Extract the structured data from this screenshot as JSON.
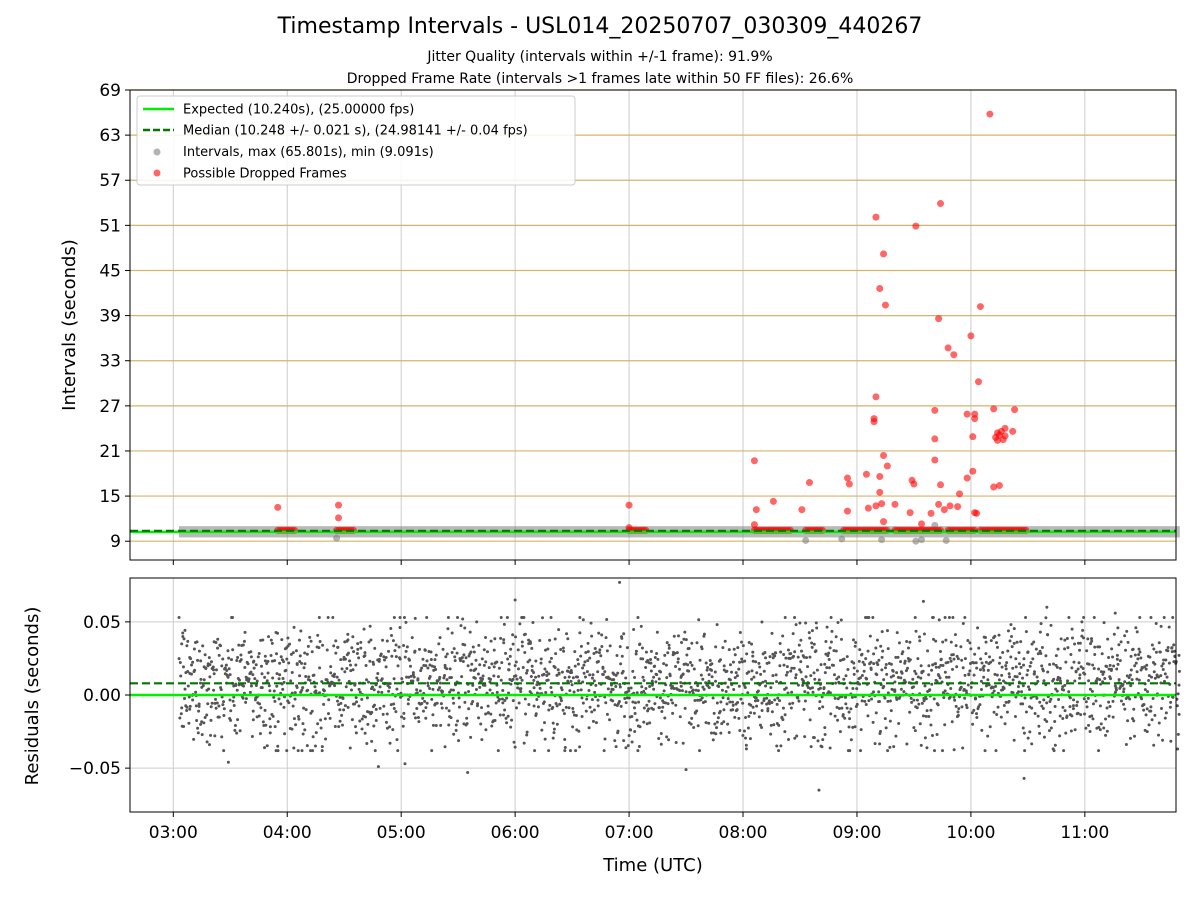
{
  "figure": {
    "title": "Timestamp Intervals - USL014_20250707_030309_440267",
    "subtitle1": "Jitter Quality (intervals within +/-1 frame): 91.9%",
    "subtitle2": "Dropped Frame Rate (intervals >1 frames late within 50 FF files): 26.6%"
  },
  "colors": {
    "expected": "#00ee00",
    "median": "#007700",
    "intervals": "#808080",
    "dropped": "#ff0000",
    "threshold_grid": "#d4b46a",
    "grid": "#cccccc",
    "residual_points": "#555555"
  },
  "chart_data": [
    {
      "type": "scatter",
      "ylabel": "Intervals (seconds)",
      "xlim_hours": [
        2.62,
        11.8
      ],
      "ylim": [
        6.5,
        69
      ],
      "yticks": [
        "9",
        "15",
        "21",
        "27",
        "33",
        "39",
        "45",
        "51",
        "57",
        "63",
        "69"
      ],
      "threshold_gridlines": [
        9,
        15,
        21,
        27,
        33,
        39,
        45,
        51,
        57,
        63,
        69
      ],
      "grid": true,
      "legend_position": "top-left",
      "legend": {
        "expected": "Expected (10.240s), (25.00000 fps)",
        "median": "Median (10.248 +/- 0.021 s), (24.98141 +/- 0.04 fps)",
        "intervals": "Intervals, max (65.801s), min (9.091s)",
        "dropped": "Possible Dropped Frames"
      },
      "expected": 10.24,
      "median": 10.248,
      "interval_band": {
        "x_start": "03:03",
        "x_end": "11:50",
        "y_low": 9.5,
        "y_high": 11.0
      },
      "gray_outliers": [
        {
          "x": "04:26",
          "y": 9.4
        },
        {
          "x": "08:33",
          "y": 9.1
        },
        {
          "x": "08:52",
          "y": 9.3
        },
        {
          "x": "09:13",
          "y": 9.2
        },
        {
          "x": "09:31",
          "y": 9.0
        },
        {
          "x": "09:34",
          "y": 9.2
        },
        {
          "x": "09:41",
          "y": 11.1
        },
        {
          "x": "09:47",
          "y": 9.1
        }
      ],
      "dropped_clusters": [
        {
          "x_start": "03:55",
          "x_end": "04:04",
          "y": 10.45
        },
        {
          "x_start": "04:26",
          "x_end": "04:36",
          "y": 10.45
        },
        {
          "x_start": "07:00",
          "x_end": "07:10",
          "y": 10.45
        },
        {
          "x_start": "08:06",
          "x_end": "08:25",
          "y": 10.45
        },
        {
          "x_start": "08:33",
          "x_end": "08:42",
          "y": 10.45
        },
        {
          "x_start": "08:53",
          "x_end": "09:16",
          "y": 10.45
        },
        {
          "x_start": "09:20",
          "x_end": "09:45",
          "y": 10.45
        },
        {
          "x_start": "09:48",
          "x_end": "10:02",
          "y": 10.45
        },
        {
          "x_start": "10:05",
          "x_end": "10:30",
          "y": 10.45
        }
      ],
      "dropped_points": [
        {
          "x": "03:55",
          "y": 13.5
        },
        {
          "x": "04:27",
          "y": 13.8
        },
        {
          "x": "04:27",
          "y": 12.1
        },
        {
          "x": "07:00",
          "y": 13.8
        },
        {
          "x": "07:00",
          "y": 10.8
        },
        {
          "x": "08:06",
          "y": 19.7
        },
        {
          "x": "08:07",
          "y": 13.2
        },
        {
          "x": "08:06",
          "y": 11.2
        },
        {
          "x": "08:16",
          "y": 14.3
        },
        {
          "x": "08:31",
          "y": 13.2
        },
        {
          "x": "08:35",
          "y": 16.8
        },
        {
          "x": "08:55",
          "y": 17.4
        },
        {
          "x": "08:56",
          "y": 16.6
        },
        {
          "x": "08:55",
          "y": 13.0
        },
        {
          "x": "09:05",
          "y": 17.9
        },
        {
          "x": "09:06",
          "y": 13.4
        },
        {
          "x": "09:09",
          "y": 25.3
        },
        {
          "x": "09:09",
          "y": 24.9
        },
        {
          "x": "09:10",
          "y": 28.2
        },
        {
          "x": "09:10",
          "y": 13.7
        },
        {
          "x": "09:10",
          "y": 52.1
        },
        {
          "x": "09:12",
          "y": 42.6
        },
        {
          "x": "09:12",
          "y": 17.6
        },
        {
          "x": "09:12",
          "y": 15.5
        },
        {
          "x": "09:13",
          "y": 14.0
        },
        {
          "x": "09:14",
          "y": 47.2
        },
        {
          "x": "09:14",
          "y": 20.4
        },
        {
          "x": "09:14",
          "y": 11.6
        },
        {
          "x": "09:15",
          "y": 40.4
        },
        {
          "x": "09:16",
          "y": 19.0
        },
        {
          "x": "09:20",
          "y": 13.9
        },
        {
          "x": "09:28",
          "y": 12.8
        },
        {
          "x": "09:29",
          "y": 17.1
        },
        {
          "x": "09:30",
          "y": 16.6
        },
        {
          "x": "09:31",
          "y": 50.9
        },
        {
          "x": "09:34",
          "y": 11.3
        },
        {
          "x": "09:39",
          "y": 12.7
        },
        {
          "x": "09:41",
          "y": 22.6
        },
        {
          "x": "09:41",
          "y": 19.8
        },
        {
          "x": "09:41",
          "y": 26.4
        },
        {
          "x": "09:43",
          "y": 38.6
        },
        {
          "x": "09:43",
          "y": 13.9
        },
        {
          "x": "09:44",
          "y": 16.5
        },
        {
          "x": "09:44",
          "y": 53.9
        },
        {
          "x": "09:46",
          "y": 13.2
        },
        {
          "x": "09:48",
          "y": 34.7
        },
        {
          "x": "09:49",
          "y": 13.7
        },
        {
          "x": "09:51",
          "y": 33.8
        },
        {
          "x": "09:53",
          "y": 13.6
        },
        {
          "x": "09:54",
          "y": 15.3
        },
        {
          "x": "09:58",
          "y": 17.4
        },
        {
          "x": "09:58",
          "y": 25.9
        },
        {
          "x": "10:00",
          "y": 36.3
        },
        {
          "x": "10:01",
          "y": 22.9
        },
        {
          "x": "10:01",
          "y": 18.3
        },
        {
          "x": "10:02",
          "y": 25.3
        },
        {
          "x": "10:02",
          "y": 25.9
        },
        {
          "x": "10:02",
          "y": 12.8
        },
        {
          "x": "10:03",
          "y": 12.7
        },
        {
          "x": "10:04",
          "y": 30.2
        },
        {
          "x": "10:05",
          "y": 40.2
        },
        {
          "x": "10:10",
          "y": 65.8
        },
        {
          "x": "10:12",
          "y": 16.2
        },
        {
          "x": "10:12",
          "y": 26.6
        },
        {
          "x": "10:13",
          "y": 22.8
        },
        {
          "x": "10:14",
          "y": 23.4
        },
        {
          "x": "10:14",
          "y": 22.4
        },
        {
          "x": "10:15",
          "y": 16.4
        },
        {
          "x": "10:15",
          "y": 23.1
        },
        {
          "x": "10:16",
          "y": 23.6
        },
        {
          "x": "10:17",
          "y": 22.5
        },
        {
          "x": "10:18",
          "y": 24.0
        },
        {
          "x": "10:18",
          "y": 23.0
        },
        {
          "x": "10:22",
          "y": 23.6
        },
        {
          "x": "10:23",
          "y": 26.5
        }
      ]
    },
    {
      "type": "scatter",
      "xlabel": "Time (UTC)",
      "ylabel": "Residuals (seconds)",
      "xlim_hours": [
        2.62,
        11.8
      ],
      "ylim": [
        -0.08,
        0.08
      ],
      "yticks": [
        "0.05",
        "0.00",
        "−0.05"
      ],
      "xticks": [
        "03:00",
        "04:00",
        "05:00",
        "06:00",
        "07:00",
        "08:00",
        "09:00",
        "10:00",
        "11:00"
      ],
      "grid": true,
      "expected_residual": 0.0,
      "median_residual": 0.008,
      "residual_start": "03:03",
      "residual_end": "11:50",
      "residual_count": 2600,
      "residual_spread_sd": 0.021,
      "residual_outliers": [
        {
          "x": "03:29",
          "y": -0.046
        },
        {
          "x": "03:55",
          "y": -0.035
        },
        {
          "x": "04:48",
          "y": -0.049
        },
        {
          "x": "05:02",
          "y": -0.047
        },
        {
          "x": "05:35",
          "y": -0.053
        },
        {
          "x": "06:00",
          "y": 0.065
        },
        {
          "x": "06:55",
          "y": 0.077
        },
        {
          "x": "07:30",
          "y": -0.051
        },
        {
          "x": "08:40",
          "y": -0.065
        },
        {
          "x": "09:35",
          "y": 0.064
        },
        {
          "x": "10:28",
          "y": -0.057
        },
        {
          "x": "10:40",
          "y": 0.06
        },
        {
          "x": "11:16",
          "y": 0.056
        }
      ]
    }
  ]
}
